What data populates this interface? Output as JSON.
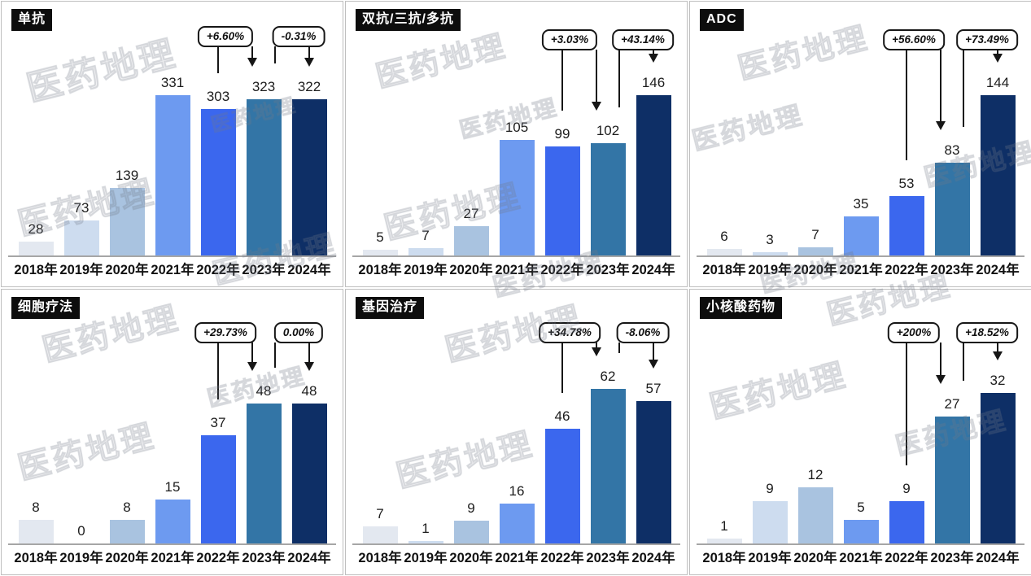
{
  "watermark_text": "医药地理",
  "palette": {
    "bar_colors": [
      "#e3e8f0",
      "#cddcef",
      "#a9c3e0",
      "#6d9af0",
      "#3b67ee",
      "#3375a6",
      "#0e2f66"
    ],
    "axis_color": "#a6a6a6",
    "callout_border": "#161616",
    "title_chip_bg": "#0d0d0d",
    "title_chip_text": "#ffffff"
  },
  "chart_data": [
    {
      "type": "bar",
      "title": "单抗",
      "categories": [
        "2018年",
        "2019年",
        "2020年",
        "2021年",
        "2022年",
        "2023年",
        "2024年"
      ],
      "values": [
        28,
        73,
        139,
        331,
        303,
        323,
        322
      ],
      "ylim": [
        0,
        331
      ],
      "grid": false,
      "annotations": [
        {
          "text": "+6.60%",
          "from_category": "2022年",
          "to_category": "2023年",
          "from": 4,
          "to": 5
        },
        {
          "text": "-0.31%",
          "from_category": "2023年",
          "to_category": "2024年",
          "from": 5,
          "to": 6
        }
      ]
    },
    {
      "type": "bar",
      "title": "双抗/三抗/多抗",
      "categories": [
        "2018年",
        "2019年",
        "2020年",
        "2021年",
        "2022年",
        "2023年",
        "2024年"
      ],
      "values": [
        5,
        7,
        27,
        105,
        99,
        102,
        146
      ],
      "ylim": [
        0,
        146
      ],
      "grid": false,
      "annotations": [
        {
          "text": "+3.03%",
          "from_category": "2022年",
          "to_category": "2023年",
          "from": 4,
          "to": 5
        },
        {
          "text": "+43.14%",
          "from_category": "2023年",
          "to_category": "2024年",
          "from": 5,
          "to": 6
        }
      ]
    },
    {
      "type": "bar",
      "title": "ADC",
      "categories": [
        "2018年",
        "2019年",
        "2020年",
        "2021年",
        "2022年",
        "2023年",
        "2024年"
      ],
      "values": [
        6,
        3,
        7,
        35,
        53,
        83,
        144
      ],
      "ylim": [
        0,
        144
      ],
      "grid": false,
      "annotations": [
        {
          "text": "+56.60%",
          "from_category": "2022年",
          "to_category": "2023年",
          "from": 4,
          "to": 5
        },
        {
          "text": "+73.49%",
          "from_category": "2023年",
          "to_category": "2024年",
          "from": 5,
          "to": 6
        }
      ]
    },
    {
      "type": "bar",
      "title": "细胞疗法",
      "categories": [
        "2018年",
        "2019年",
        "2020年",
        "2021年",
        "2022年",
        "2023年",
        "2024年"
      ],
      "values": [
        8,
        0,
        8,
        15,
        37,
        48,
        48
      ],
      "ylim": [
        0,
        48
      ],
      "grid": false,
      "annotations": [
        {
          "text": "+29.73%",
          "from_category": "2022年",
          "to_category": "2023年",
          "from": 4,
          "to": 5
        },
        {
          "text": "0.00%",
          "from_category": "2023年",
          "to_category": "2024年",
          "from": 5,
          "to": 6
        }
      ]
    },
    {
      "type": "bar",
      "title": "基因治疗",
      "categories": [
        "2018年",
        "2019年",
        "2020年",
        "2021年",
        "2022年",
        "2023年",
        "2024年"
      ],
      "values": [
        7,
        1,
        9,
        16,
        46,
        62,
        57
      ],
      "ylim": [
        0,
        62
      ],
      "grid": false,
      "annotations": [
        {
          "text": "+34.78%",
          "from_category": "2022年",
          "to_category": "2023年",
          "from": 4,
          "to": 5
        },
        {
          "text": "-8.06%",
          "from_category": "2023年",
          "to_category": "2024年",
          "from": 5,
          "to": 6
        }
      ]
    },
    {
      "type": "bar",
      "title": "小核酸药物",
      "categories": [
        "2018年",
        "2019年",
        "2020年",
        "2021年",
        "2022年",
        "2023年",
        "2024年"
      ],
      "values": [
        1,
        9,
        12,
        5,
        9,
        27,
        32
      ],
      "ylim": [
        0,
        32
      ],
      "grid": false,
      "annotations": [
        {
          "text": "+200%",
          "from_category": "2022年",
          "to_category": "2023年",
          "from": 4,
          "to": 5
        },
        {
          "text": "+18.52%",
          "from_category": "2023年",
          "to_category": "2024年",
          "from": 5,
          "to": 6
        }
      ]
    }
  ]
}
